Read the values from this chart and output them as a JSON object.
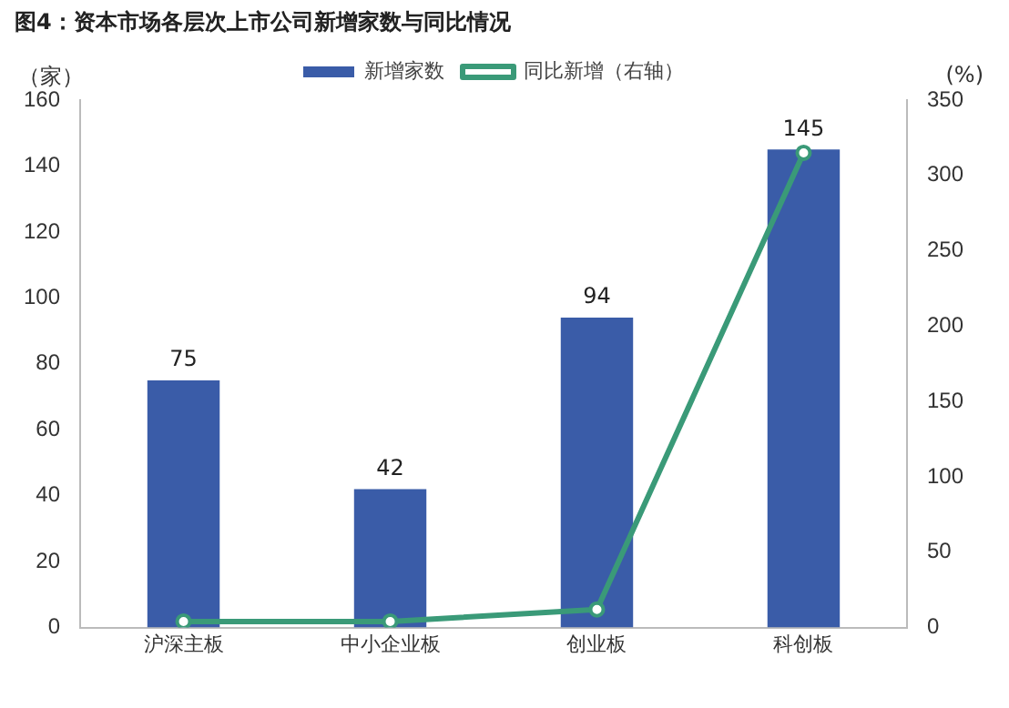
{
  "chart_data": {
    "type": "bar",
    "title": "图4：资本市场各层次上市公司新增家数与同比情况",
    "ylabel": "（家）",
    "y2label": "(%)",
    "categories": [
      "沪深主板",
      "中小企业板",
      "创业板",
      "科创板"
    ],
    "series": [
      {
        "name": "新增家数",
        "color": "#3a5ca8",
        "values": [
          75,
          42,
          94,
          145
        ],
        "value_labels": [
          "75",
          "42",
          "94",
          "145"
        ]
      },
      {
        "name": "同比新增（右轴）",
        "type": "line",
        "axis": "y2",
        "color": "#3a9a78",
        "values": [
          4,
          4,
          12,
          315
        ],
        "marker": "circle"
      }
    ],
    "ylim": [
      0,
      160
    ],
    "yticks": [
      0,
      20,
      40,
      60,
      80,
      100,
      120,
      140,
      160
    ],
    "y2lim": [
      0,
      350
    ],
    "y2ticks": [
      0,
      50,
      100,
      150,
      200,
      250,
      300,
      350
    ],
    "grid": false,
    "legend": "top"
  }
}
